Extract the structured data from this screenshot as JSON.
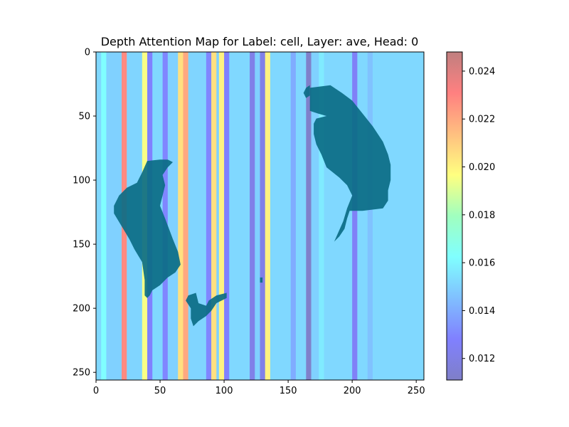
{
  "chart_data": {
    "type": "heatmap",
    "title": "Depth Attention Map for Label: cell, Layer: ave, Head: 0",
    "xlabel": "",
    "ylabel": "",
    "xlim": [
      0,
      256
    ],
    "ylim": [
      256,
      0
    ],
    "x_ticks": [
      "0",
      "50",
      "100",
      "150",
      "200",
      "250"
    ],
    "y_ticks": [
      "0",
      "50",
      "100",
      "150",
      "200",
      "250"
    ],
    "colorbar": {
      "colormap": "jet",
      "alpha": 0.5,
      "range": [
        0.0111,
        0.0248
      ],
      "ticks": [
        "0.012",
        "0.014",
        "0.016",
        "0.018",
        "0.020",
        "0.022",
        "0.024"
      ]
    },
    "column_attention": [
      {
        "x0": 0,
        "x1": 4,
        "value": 0.0152
      },
      {
        "x0": 4,
        "x1": 8,
        "value": 0.0162
      },
      {
        "x0": 8,
        "x1": 20,
        "value": 0.015
      },
      {
        "x0": 20,
        "x1": 24,
        "value": 0.0228
      },
      {
        "x0": 24,
        "x1": 36,
        "value": 0.0151
      },
      {
        "x0": 36,
        "x1": 40,
        "value": 0.0195
      },
      {
        "x0": 40,
        "x1": 44,
        "value": 0.0128
      },
      {
        "x0": 44,
        "x1": 52,
        "value": 0.0152
      },
      {
        "x0": 52,
        "x1": 56,
        "value": 0.013
      },
      {
        "x0": 56,
        "x1": 64,
        "value": 0.015
      },
      {
        "x0": 64,
        "x1": 68,
        "value": 0.0205
      },
      {
        "x0": 68,
        "x1": 72,
        "value": 0.022
      },
      {
        "x0": 72,
        "x1": 86,
        "value": 0.0151
      },
      {
        "x0": 86,
        "x1": 90,
        "value": 0.013
      },
      {
        "x0": 90,
        "x1": 94,
        "value": 0.0205
      },
      {
        "x0": 94,
        "x1": 96,
        "value": 0.015
      },
      {
        "x0": 96,
        "x1": 100,
        "value": 0.02
      },
      {
        "x0": 100,
        "x1": 104,
        "value": 0.0128
      },
      {
        "x0": 104,
        "x1": 120,
        "value": 0.0152
      },
      {
        "x0": 120,
        "x1": 124,
        "value": 0.0122
      },
      {
        "x0": 124,
        "x1": 128,
        "value": 0.015
      },
      {
        "x0": 128,
        "x1": 132,
        "value": 0.0122
      },
      {
        "x0": 132,
        "x1": 136,
        "value": 0.02
      },
      {
        "x0": 136,
        "x1": 152,
        "value": 0.0152
      },
      {
        "x0": 152,
        "x1": 156,
        "value": 0.014
      },
      {
        "x0": 156,
        "x1": 164,
        "value": 0.0152
      },
      {
        "x0": 164,
        "x1": 168,
        "value": 0.0114
      },
      {
        "x0": 168,
        "x1": 174,
        "value": 0.015
      },
      {
        "x0": 174,
        "x1": 178,
        "value": 0.0157
      },
      {
        "x0": 178,
        "x1": 200,
        "value": 0.0152
      },
      {
        "x0": 200,
        "x1": 204,
        "value": 0.0126
      },
      {
        "x0": 204,
        "x1": 212,
        "value": 0.0152
      },
      {
        "x0": 212,
        "x1": 216,
        "value": 0.0146
      },
      {
        "x0": 216,
        "x1": 256,
        "value": 0.0152
      }
    ],
    "cell_regions": [
      [
        [
          167,
          28
        ],
        [
          183,
          26
        ],
        [
          192,
          32
        ],
        [
          200,
          38
        ],
        [
          208,
          48
        ],
        [
          216,
          58
        ],
        [
          224,
          70
        ],
        [
          228,
          80
        ],
        [
          230,
          88
        ],
        [
          230,
          100
        ],
        [
          228,
          108
        ],
        [
          228,
          116
        ],
        [
          224,
          122
        ],
        [
          208,
          124
        ],
        [
          198,
          124
        ],
        [
          196,
          130
        ],
        [
          194,
          138
        ],
        [
          190,
          144
        ],
        [
          186,
          148
        ],
        [
          193,
          132
        ],
        [
          196,
          122
        ],
        [
          200,
          112
        ],
        [
          196,
          104
        ],
        [
          190,
          98
        ],
        [
          180,
          90
        ],
        [
          176,
          80
        ],
        [
          172,
          72
        ],
        [
          170,
          64
        ],
        [
          170,
          56
        ],
        [
          172,
          52
        ],
        [
          180,
          50
        ],
        [
          173,
          48
        ],
        [
          167,
          46
        ]
      ],
      [
        [
          164,
          28
        ],
        [
          167,
          26
        ],
        [
          167,
          34
        ],
        [
          164,
          36
        ],
        [
          162,
          32
        ]
      ],
      [
        [
          40,
          85
        ],
        [
          50,
          84
        ],
        [
          56,
          84
        ],
        [
          60,
          86
        ],
        [
          56,
          90
        ],
        [
          52,
          96
        ],
        [
          54,
          104
        ],
        [
          52,
          112
        ],
        [
          50,
          120
        ],
        [
          54,
          130
        ],
        [
          60,
          146
        ],
        [
          64,
          156
        ],
        [
          66,
          166
        ],
        [
          62,
          172
        ],
        [
          56,
          176
        ],
        [
          50,
          182
        ],
        [
          44,
          186
        ],
        [
          42,
          190
        ],
        [
          40,
          192
        ],
        [
          38,
          190
        ],
        [
          38,
          178
        ],
        [
          36,
          164
        ],
        [
          30,
          154
        ],
        [
          26,
          146
        ],
        [
          20,
          136
        ],
        [
          14,
          126
        ],
        [
          14,
          120
        ],
        [
          18,
          112
        ],
        [
          24,
          106
        ],
        [
          32,
          102
        ],
        [
          36,
          94
        ]
      ],
      [
        [
          72,
          190
        ],
        [
          78,
          188
        ],
        [
          80,
          196
        ],
        [
          86,
          198
        ],
        [
          88,
          194
        ],
        [
          94,
          190
        ],
        [
          102,
          188
        ],
        [
          102,
          192
        ],
        [
          94,
          196
        ],
        [
          90,
          202
        ],
        [
          86,
          206
        ],
        [
          80,
          210
        ],
        [
          76,
          214
        ],
        [
          74,
          208
        ],
        [
          74,
          200
        ],
        [
          70,
          194
        ]
      ],
      [
        [
          128,
          176
        ],
        [
          130,
          176
        ],
        [
          130,
          180
        ],
        [
          128,
          180
        ]
      ]
    ],
    "cell_color": "#0b6d86",
    "cell_dark_color": "#0a0a9a"
  }
}
